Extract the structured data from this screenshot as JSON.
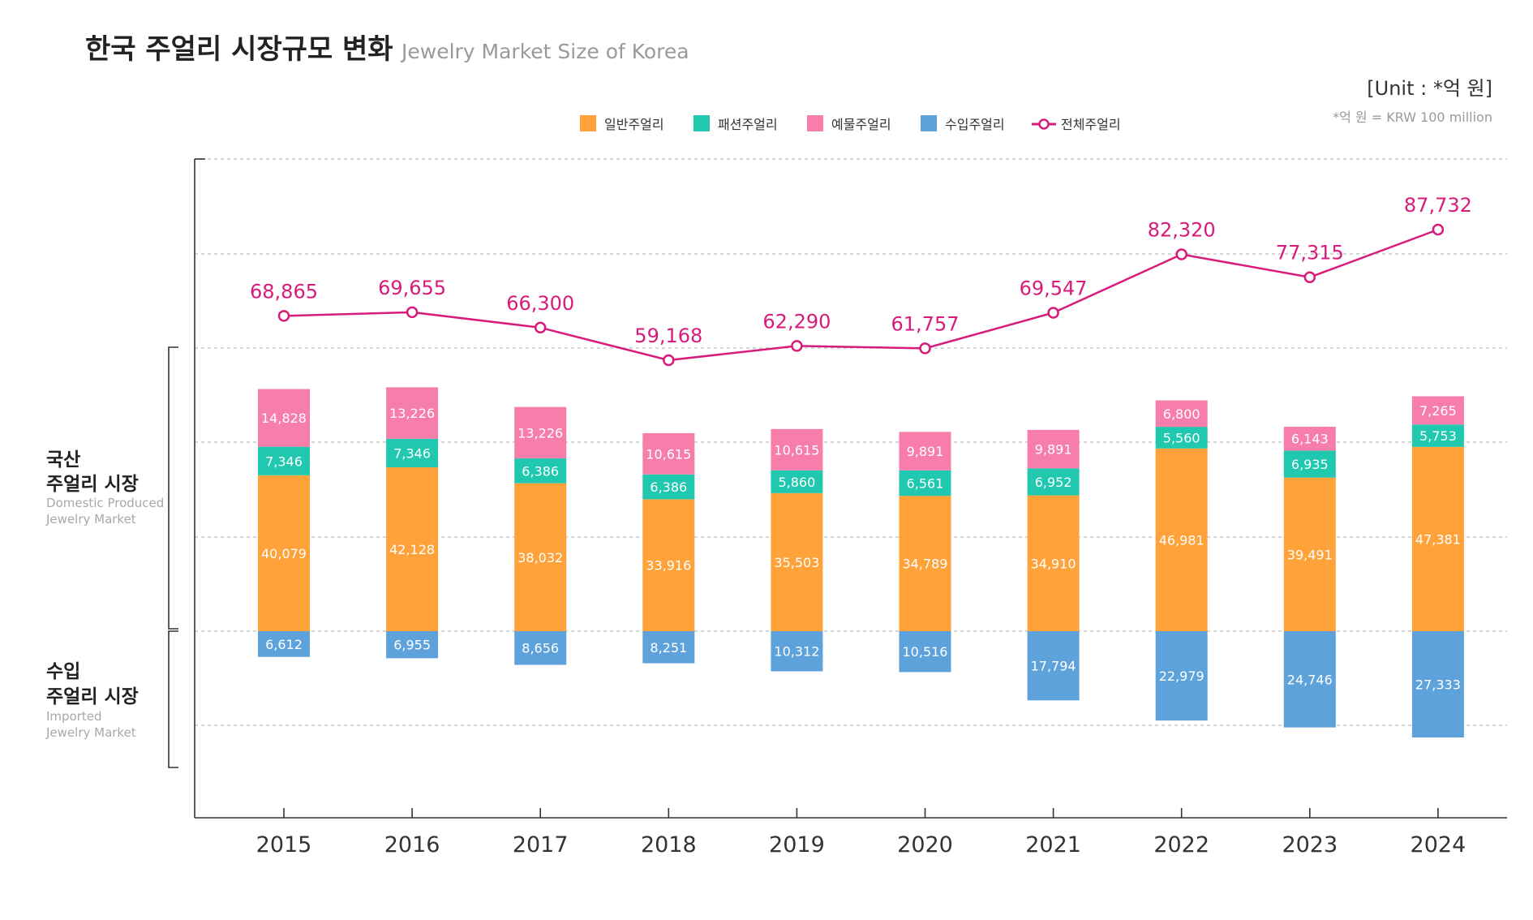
{
  "header": {
    "title_kr": "한국 주얼리 시장규모 변화",
    "title_en": "Jewelry Market Size of Korea",
    "unit": "[Unit : *억 원]",
    "unit_note": "*억 원 = KRW 100 million"
  },
  "groups": {
    "domestic": {
      "kr_line1": "국산",
      "kr_line2": "주얼리 시장",
      "en_line1": "Domestic Produced",
      "en_line2": "Jewelry Market"
    },
    "imported": {
      "kr_line1": "수입",
      "kr_line2": "주얼리 시장",
      "en_line1": "Imported",
      "en_line2": "Jewelry Market"
    }
  },
  "chart_data": {
    "type": "bar",
    "stacked": true,
    "categories": [
      "2015",
      "2016",
      "2017",
      "2018",
      "2019",
      "2020",
      "2021",
      "2022",
      "2023",
      "2024"
    ],
    "series": [
      {
        "name": "일반주얼리",
        "color": "#FFA23A",
        "values": [
          40079,
          42128,
          38032,
          33916,
          35503,
          34789,
          34910,
          46981,
          39491,
          47381
        ]
      },
      {
        "name": "패션주얼리",
        "color": "#1FC8AE",
        "values": [
          7346,
          7346,
          6386,
          6386,
          5860,
          6561,
          6952,
          5560,
          6935,
          5753
        ]
      },
      {
        "name": "예물주얼리",
        "color": "#F77EAB",
        "values": [
          14828,
          13226,
          13226,
          10615,
          10615,
          9891,
          9891,
          6800,
          6143,
          7265
        ]
      },
      {
        "name": "수입주얼리",
        "color": "#5EA2DC",
        "values": [
          6612,
          6955,
          8656,
          8251,
          10312,
          10516,
          17794,
          22979,
          24746,
          27333
        ]
      },
      {
        "name": "전체주얼리",
        "color": "#D81B7A",
        "type": "line",
        "values": [
          68865,
          69655,
          66300,
          59168,
          62290,
          61757,
          69547,
          82320,
          77315,
          87732
        ]
      }
    ],
    "legend_position": "top-center",
    "grid": true
  }
}
